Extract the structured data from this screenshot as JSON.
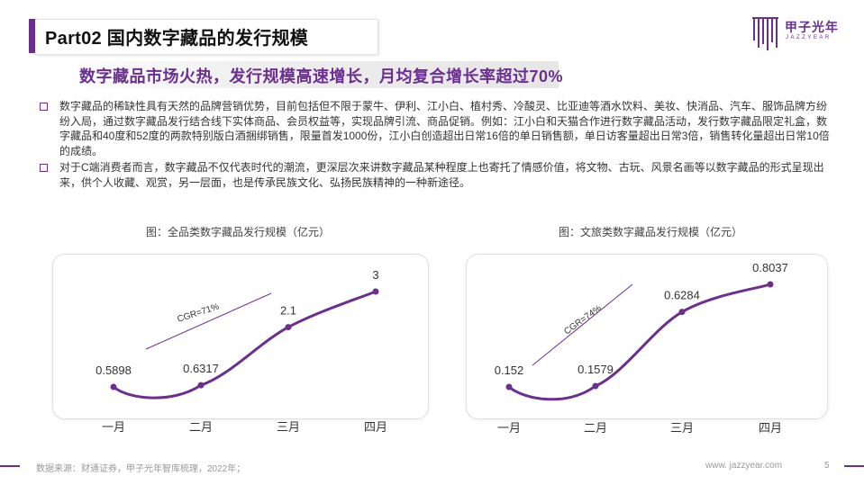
{
  "header": {
    "title": "Part02 国内数字藏品的发行规模",
    "subtitle": "数字藏品市场火热，发行规模高速增长，月均复合增长率超过70%",
    "logo_main": "甲子光年",
    "logo_sub": "JAZZYEAR"
  },
  "bullets": [
    "数字藏品的稀缺性具有天然的品牌营销优势，目前包括但不限于蒙牛、伊利、江小白、植村秀、冷酸灵、比亚迪等酒水饮料、美妆、快消品、汽车、服饰品牌方纷纷入局，通过数字藏品发行结合线下实体商品、会员权益等，实现品牌引流、商品促销。例如：江小白和天猫合作进行数字藏品活动，发行数字藏品限定礼盒，数字藏品和40度和52度的两款特别版白酒捆绑销售，限量首发1000份，江小白创造超出日常16倍的单日销售额，单日访客量超出日常3倍，销售转化量超出日常10倍的成绩。",
    "对于C端消费者而言，数字藏品不仅代表时代的潮流，更深层次来讲数字藏品某种程度上也寄托了情感价值，将文物、古玩、风景名画等以数字藏品的形式呈现出来，供个人收藏、观赏，另一层面，也是传承民族文化、弘扬民族精神的一种新途径。"
  ],
  "colors": {
    "accent": "#6a2f8f",
    "line": "#6a2f8f"
  },
  "chart_data": [
    {
      "type": "line",
      "title": "图：全品类数字藏品发行规模（亿元）",
      "categories": [
        "一月",
        "二月",
        "三月",
        "四月"
      ],
      "values": [
        0.5898,
        0.6317,
        2.1,
        3
      ],
      "value_labels": [
        "0.5898",
        "0.6317",
        "2.1",
        "3"
      ],
      "annotation": "CGR=71%",
      "grid": false
    },
    {
      "type": "line",
      "title": "图：文旅类数字藏品发行规模（亿元）",
      "categories": [
        "一月",
        "二月",
        "三月",
        "四月"
      ],
      "values": [
        0.152,
        0.1579,
        0.6284,
        0.8037
      ],
      "value_labels": [
        "0.152",
        "0.1579",
        "0.6284",
        "0.8037"
      ],
      "annotation": "CGR=74%",
      "grid": false
    }
  ],
  "footer": {
    "source": "数据来源：财通证券，甲子光年智库梳理，2022年；",
    "url": "www. jazzyear.com",
    "page": "5"
  }
}
